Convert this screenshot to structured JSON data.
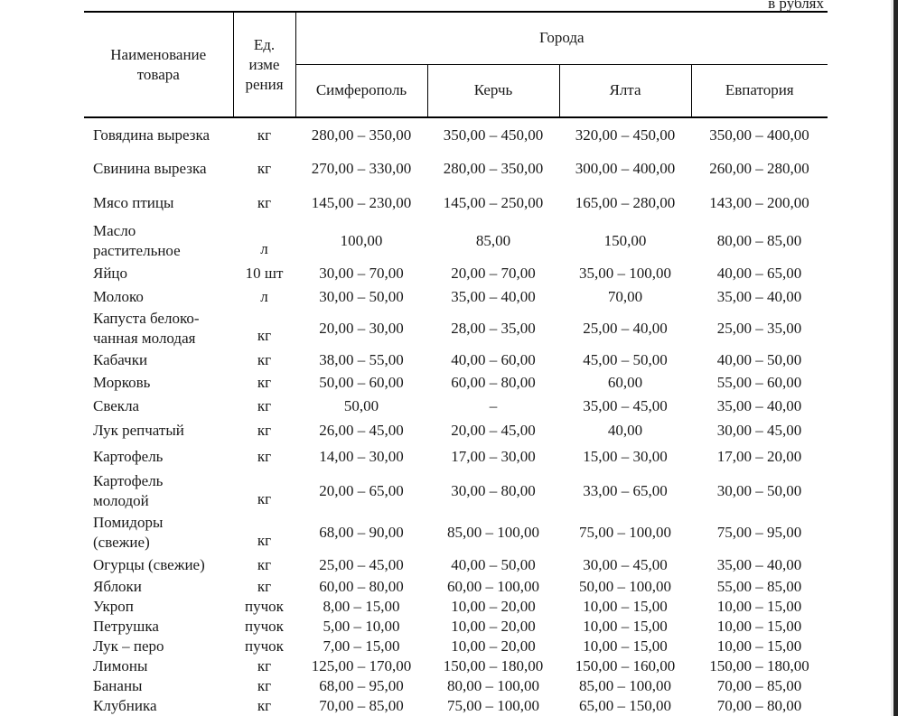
{
  "page": {
    "currency_note": "в рублях"
  },
  "table": {
    "header": {
      "product": "Наименование\nтовара",
      "unit": "Ед.\nизме\nрения",
      "cities_group": "Города",
      "cities": [
        "Симферополь",
        "Керчь",
        "Ялта",
        "Евпатория"
      ]
    },
    "rows": [
      {
        "name": "Говядина вырезка",
        "unit": "кг",
        "values": [
          "280,00 – 350,00",
          "350,00 – 450,00",
          "320,00 – 450,00",
          "350,00 – 400,00"
        ]
      },
      {
        "name": "Свинина вырезка",
        "unit": "кг",
        "values": [
          "270,00 – 330,00",
          "280,00 – 350,00",
          "300,00 – 400,00",
          "260,00 – 280,00"
        ]
      },
      {
        "name": "Мясо птицы",
        "unit": "кг",
        "values": [
          "145,00 – 230,00",
          "145,00 – 250,00",
          "165,00 – 280,00",
          "143,00 – 200,00"
        ]
      },
      {
        "name": "Масло\nрастительное",
        "unit": "л",
        "values": [
          "100,00",
          "85,00",
          "150,00",
          "80,00 – 85,00"
        ]
      },
      {
        "name": "Яйцо",
        "unit": "10 шт",
        "values": [
          "30,00 – 70,00",
          "20,00 – 70,00",
          "35,00 – 100,00",
          "40,00 – 65,00"
        ]
      },
      {
        "name": "Молоко",
        "unit": "л",
        "values": [
          "30,00 – 50,00",
          "35,00 – 40,00",
          "70,00",
          "35,00 – 40,00"
        ]
      },
      {
        "name": "Капуста белоко-\nчанная молодая",
        "unit": "кг",
        "values": [
          "20,00 – 30,00",
          "28,00 – 35,00",
          "25,00 – 40,00",
          "25,00 – 35,00"
        ]
      },
      {
        "name": "Кабачки",
        "unit": "кг",
        "values": [
          "38,00 – 55,00",
          "40,00 – 60,00",
          "45,00 – 50,00",
          "40,00 – 50,00"
        ]
      },
      {
        "name": "Морковь",
        "unit": "кг",
        "values": [
          "50,00 – 60,00",
          "60,00 – 80,00",
          "60,00",
          "55,00 – 60,00"
        ]
      },
      {
        "name": "Свекла",
        "unit": "кг",
        "values": [
          "50,00",
          "–",
          "35,00 – 45,00",
          "35,00 – 40,00"
        ]
      },
      {
        "name": "Лук репчатый",
        "unit": "кг",
        "values": [
          "26,00 – 45,00",
          "20,00 – 45,00",
          "40,00",
          "30,00 – 45,00"
        ]
      },
      {
        "name": "Картофель",
        "unit": "кг",
        "values": [
          "14,00 – 30,00",
          "17,00 – 30,00",
          "15,00 – 30,00",
          "17,00 – 20,00"
        ]
      },
      {
        "name": "Картофель\nмолодой",
        "unit": "кг",
        "values": [
          "20,00 – 65,00",
          "30,00 – 80,00",
          "33,00 – 65,00",
          "30,00 – 50,00"
        ]
      },
      {
        "name": "Помидоры\n(свежие)",
        "unit": "кг",
        "values": [
          "68,00 – 90,00",
          "85,00 – 100,00",
          "75,00 – 100,00",
          "75,00 – 95,00"
        ]
      },
      {
        "name": "Огурцы (свежие)",
        "unit": "кг",
        "values": [
          "25,00 – 45,00",
          "40,00 – 50,00",
          "30,00 – 45,00",
          "35,00 – 40,00"
        ]
      },
      {
        "name": "Яблоки",
        "unit": "кг",
        "values": [
          "60,00 – 80,00",
          "60,00 – 100,00",
          "50,00 – 100,00",
          "55,00 – 85,00"
        ]
      },
      {
        "name": "Укроп",
        "unit": "пучок",
        "values": [
          "8,00 – 15,00",
          "10,00 – 20,00",
          "10,00 – 15,00",
          "10,00 – 15,00"
        ]
      },
      {
        "name": "Петрушка",
        "unit": "пучок",
        "values": [
          "5,00 – 10,00",
          "10,00 – 20,00",
          "10,00 – 15,00",
          "10,00 – 15,00"
        ]
      },
      {
        "name": "Лук – перо",
        "unit": "пучок",
        "values": [
          "7,00 – 15,00",
          "10,00 – 20,00",
          "10,00 – 15,00",
          "10,00 – 15,00"
        ]
      },
      {
        "name": "Лимоны",
        "unit": "кг",
        "values": [
          "125,00 – 170,00",
          "150,00 – 180,00",
          "150,00 – 160,00",
          "150,00 – 180,00"
        ]
      },
      {
        "name": "Бананы",
        "unit": "кг",
        "values": [
          "68,00 – 95,00",
          "80,00 – 100,00",
          "85,00 – 100,00",
          "70,00 – 85,00"
        ]
      },
      {
        "name": "Клубника",
        "unit": "кг",
        "values": [
          "70,00 – 85,00",
          "75,00 – 100,00",
          "65,00 – 150,00",
          "70,00 – 80,00"
        ]
      }
    ]
  },
  "colors": {
    "border": "#000000",
    "edge_bar": "#242424",
    "background": "#ffffff"
  }
}
